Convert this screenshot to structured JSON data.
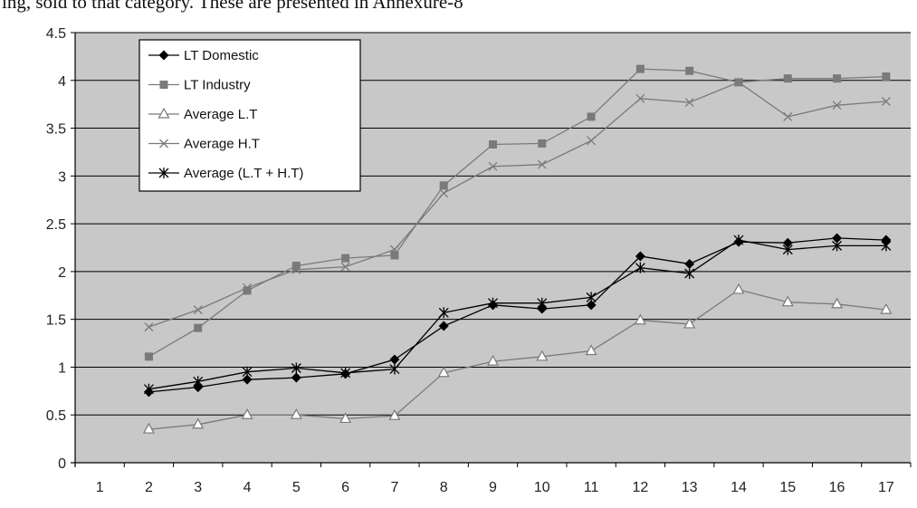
{
  "page": {
    "top_text": "ing, sold to that category. These are presented in Annexure-8"
  },
  "chart_data": {
    "type": "line",
    "title": "",
    "xlabel": "",
    "ylabel": "",
    "categories": [
      "1",
      "2",
      "3",
      "4",
      "5",
      "6",
      "7",
      "8",
      "9",
      "10",
      "11",
      "12",
      "13",
      "14",
      "15",
      "16",
      "17"
    ],
    "ylim": [
      0,
      4.5
    ],
    "yticks": [
      "0",
      "0.5",
      "1",
      "1.5",
      "2",
      "2.5",
      "3",
      "3.5",
      "4",
      "4.5"
    ],
    "grid": true,
    "legend_position": "top-left",
    "colors": {
      "plot_background": "#c8c8c8",
      "gridline": "#000000",
      "dark_series": "#000000",
      "grey_series": "#7a7a7a"
    },
    "series": [
      {
        "name": "LT Domestic",
        "marker": "diamond",
        "color": "#000000",
        "values": [
          null,
          0.74,
          0.79,
          0.87,
          0.89,
          0.93,
          1.08,
          1.43,
          1.65,
          1.61,
          1.65,
          2.16,
          2.08,
          2.31,
          2.3,
          2.35,
          2.33
        ]
      },
      {
        "name": "LT Industry",
        "marker": "square",
        "color": "#7a7a7a",
        "values": [
          null,
          1.11,
          1.41,
          1.8,
          2.06,
          2.14,
          2.17,
          2.9,
          3.33,
          3.34,
          3.62,
          4.12,
          4.1,
          3.98,
          4.02,
          4.02,
          4.04
        ]
      },
      {
        "name": "Average L.T",
        "marker": "triangle",
        "color": "#7a7a7a",
        "values": [
          null,
          0.35,
          0.4,
          0.5,
          0.5,
          0.46,
          0.49,
          0.94,
          1.06,
          1.11,
          1.17,
          1.49,
          1.45,
          1.81,
          1.68,
          1.66,
          1.6
        ]
      },
      {
        "name": "Average H.T",
        "marker": "x",
        "color": "#7a7a7a",
        "values": [
          null,
          1.42,
          1.6,
          1.83,
          2.02,
          2.05,
          2.23,
          2.82,
          3.1,
          3.12,
          3.37,
          3.81,
          3.77,
          3.98,
          3.62,
          3.74,
          3.78
        ]
      },
      {
        "name": "Average (L.T + H.T)",
        "marker": "star",
        "color": "#000000",
        "values": [
          null,
          0.77,
          0.85,
          0.95,
          0.99,
          0.94,
          0.98,
          1.57,
          1.67,
          1.67,
          1.73,
          2.04,
          1.98,
          2.33,
          2.23,
          2.27,
          2.27
        ]
      }
    ]
  }
}
